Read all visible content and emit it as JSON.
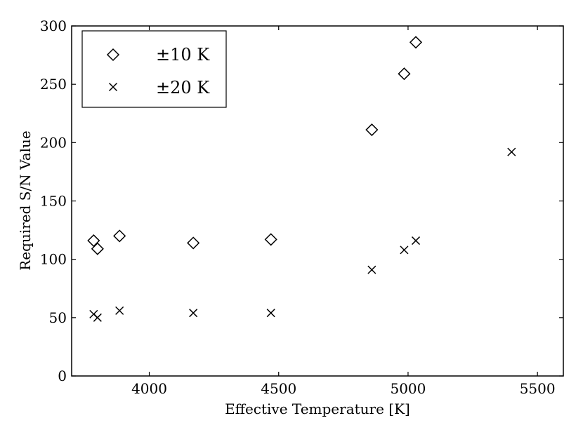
{
  "chart_data": {
    "type": "scatter",
    "xlabel": "Effective Temperature [K]",
    "ylabel": "Required S/N Value",
    "xlim": [
      3700,
      5600
    ],
    "ylim": [
      0,
      300
    ],
    "xticks": [
      4000,
      4500,
      5000,
      5500
    ],
    "yticks": [
      0,
      50,
      100,
      150,
      200,
      250,
      300
    ],
    "grid": false,
    "legend_position": "top-left",
    "series": [
      {
        "name": "±10 K",
        "marker": "diamond",
        "color": "#000000",
        "points": [
          {
            "x": 3785,
            "y": 116
          },
          {
            "x": 3800,
            "y": 109
          },
          {
            "x": 3885,
            "y": 120
          },
          {
            "x": 4170,
            "y": 114
          },
          {
            "x": 4470,
            "y": 117
          },
          {
            "x": 4860,
            "y": 211
          },
          {
            "x": 4985,
            "y": 259
          },
          {
            "x": 5030,
            "y": 286
          }
        ]
      },
      {
        "name": "±20 K",
        "marker": "x",
        "color": "#000000",
        "points": [
          {
            "x": 3785,
            "y": 53
          },
          {
            "x": 3800,
            "y": 50
          },
          {
            "x": 3885,
            "y": 56
          },
          {
            "x": 4170,
            "y": 54
          },
          {
            "x": 4470,
            "y": 54
          },
          {
            "x": 4860,
            "y": 91
          },
          {
            "x": 4985,
            "y": 108
          },
          {
            "x": 5030,
            "y": 116
          },
          {
            "x": 5400,
            "y": 192
          }
        ]
      }
    ]
  }
}
